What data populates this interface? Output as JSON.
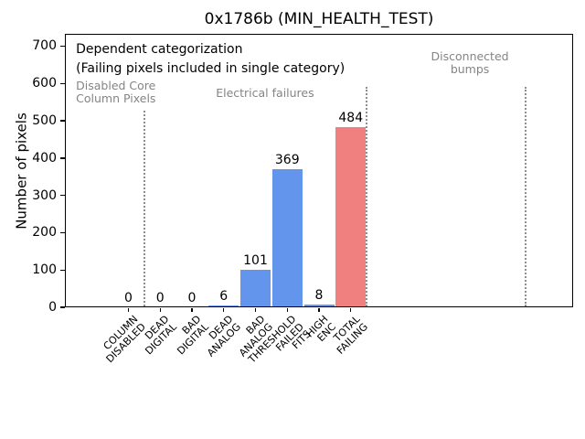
{
  "figure": {
    "title": "0x1786b (MIN_HEALTH_TEST)",
    "ylabel": "Number of pixels"
  },
  "chart_data": {
    "type": "bar",
    "title": "0x1786b (MIN_HEALTH_TEST)",
    "xlabel": "",
    "ylabel": "Number of pixels",
    "ylim": [
      0,
      733
    ],
    "xlim": [
      -2,
      14
    ],
    "yticks": [
      0,
      100,
      200,
      300,
      400,
      500,
      600,
      700
    ],
    "grid": false,
    "legend_position": "none",
    "categories": [
      "COLUMN DISABLED",
      "DEAD DIGITAL",
      "BAD DIGITAL",
      "DEAD ANALOG",
      "BAD ANALOG",
      "THRESHOLD FAILED FITS",
      "HIGH ENC",
      "TOTAL FAILING"
    ],
    "category_lines": [
      [
        "COLUMN",
        "DISABLED"
      ],
      [
        "DEAD",
        "DIGITAL"
      ],
      [
        "BAD",
        "DIGITAL"
      ],
      [
        "DEAD",
        "ANALOG"
      ],
      [
        "BAD",
        "ANALOG"
      ],
      [
        "THRESHOLD",
        "FAILED",
        "FITS"
      ],
      [
        "HIGH",
        "ENC"
      ],
      [
        "TOTAL",
        "FAILING"
      ]
    ],
    "values": [
      0,
      0,
      0,
      6,
      101,
      369,
      8,
      484
    ],
    "value_labels": [
      "0",
      "0",
      "0",
      "6",
      "101",
      "369",
      "8",
      "484"
    ],
    "bar_colors": [
      "#6495ed",
      "#6495ed",
      "#6495ed",
      "#6495ed",
      "#6495ed",
      "#6495ed",
      "#6495ed",
      "#f08080"
    ],
    "colors": {
      "bar_blue": "#6495ed",
      "bar_red": "#f08080",
      "annotation_gray": "#848484",
      "separator_gray": "#8f8f8f",
      "text_black": "#000000"
    },
    "annotations": [
      {
        "id": "dependent-categorization-note",
        "lines": [
          "Dependent categorization"
        ],
        "x": -1.65,
        "y_top": 710,
        "align": "left",
        "color": "#000000",
        "size": 14
      },
      {
        "id": "failing-pixels-note",
        "lines": [
          "(Failing pixels included in single category)"
        ],
        "x": -1.65,
        "y_top": 659,
        "align": "left",
        "color": "#000000",
        "size": 14
      },
      {
        "id": "region-label-disabled-core",
        "lines": [
          "Disabled Core",
          "Column Pixels"
        ],
        "x": -1.65,
        "y_top": 610,
        "align": "left",
        "color": "#848484",
        "size": 12.5
      },
      {
        "id": "region-label-electrical-failures",
        "lines": [
          "Electrical failures"
        ],
        "x": 4.3,
        "y_top": 592,
        "align": "center",
        "color": "#848484",
        "size": 12.5
      },
      {
        "id": "region-label-disconnected-bumps",
        "lines": [
          "Disconnected",
          "bumps"
        ],
        "x": 10.75,
        "y_top": 688,
        "align": "center",
        "color": "#848484",
        "size": 12.5
      }
    ],
    "separators": [
      {
        "x": 0.5,
        "y_top": 528
      },
      {
        "x": 7.5,
        "y_top": 590
      },
      {
        "x": 12.5,
        "y_top": 590
      }
    ]
  }
}
